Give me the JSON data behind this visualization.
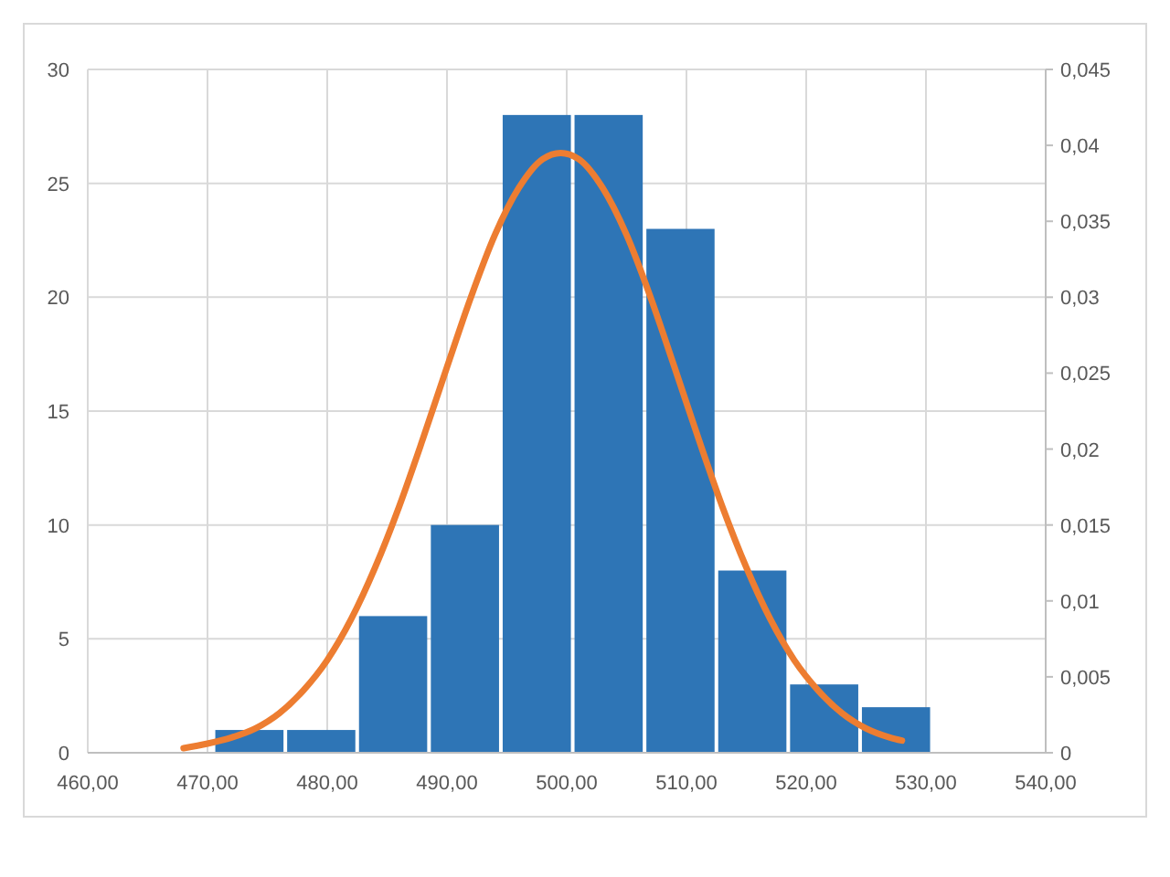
{
  "chart_data": {
    "type": "histogram",
    "bins": [
      470.5,
      476.5,
      482.5,
      488.5,
      494.5,
      500.5,
      506.5,
      512.5,
      518.5,
      524.5,
      530.5
    ],
    "series": [
      {
        "color": "#2e75b6",
        "values": [
          1,
          1,
          6,
          10,
          28,
          28,
          23,
          8,
          3,
          2
        ]
      },
      {
        "type": "line",
        "axis": "y2",
        "color": "#ed7d31",
        "x": [
          468,
          470,
          472,
          474,
          476,
          478,
          480,
          482,
          484,
          486,
          488,
          490,
          492,
          494,
          496,
          498,
          499.5,
          501,
          503,
          505,
          507,
          509,
          511,
          513,
          515,
          517,
          519,
          521,
          523,
          525,
          527,
          528
        ],
        "values": [
          0.0003,
          0.0006,
          0.001,
          0.0016,
          0.0026,
          0.0041,
          0.0061,
          0.0088,
          0.0122,
          0.0162,
          0.0207,
          0.0254,
          0.03,
          0.0341,
          0.0372,
          0.0391,
          0.0395,
          0.0391,
          0.0372,
          0.0341,
          0.03,
          0.0254,
          0.0207,
          0.0162,
          0.0122,
          0.0088,
          0.0061,
          0.0041,
          0.0026,
          0.0016,
          0.001,
          0.0008
        ]
      }
    ],
    "xlim": [
      460,
      540
    ],
    "xticks": [
      {
        "value": 460,
        "label": "460,00"
      },
      {
        "value": 470,
        "label": "470,00"
      },
      {
        "value": 480,
        "label": "480,00"
      },
      {
        "value": 490,
        "label": "490,00"
      },
      {
        "value": 500,
        "label": "500,00"
      },
      {
        "value": 510,
        "label": "510,00"
      },
      {
        "value": 520,
        "label": "520,00"
      },
      {
        "value": 530,
        "label": "530,00"
      },
      {
        "value": 540,
        "label": "540,00"
      }
    ],
    "ylim": [
      0,
      30
    ],
    "yticks": [
      0,
      5,
      10,
      15,
      20,
      25,
      30
    ],
    "y2lim": [
      0,
      0.045
    ],
    "y2ticks": [
      0,
      {
        "value": 0.005,
        "label": "0,005"
      },
      {
        "value": 0.01,
        "label": "0,01"
      },
      {
        "value": 0.015,
        "label": "0,015"
      },
      {
        "value": 0.02,
        "label": "0,02"
      },
      {
        "value": 0.025,
        "label": "0,025"
      },
      {
        "value": 0.03,
        "label": "0,03"
      },
      {
        "value": 0.035,
        "label": "0,035"
      },
      {
        "value": 0.04,
        "label": "0,04"
      },
      {
        "value": 0.045,
        "label": "0,045"
      }
    ],
    "grid": true
  }
}
